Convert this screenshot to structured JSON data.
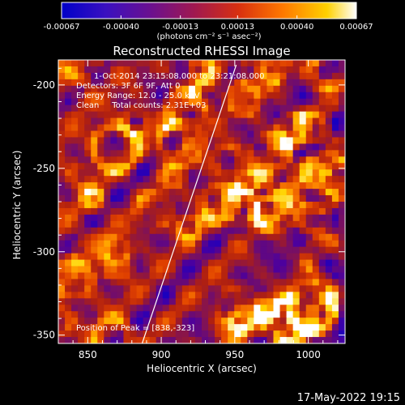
{
  "chart_data": {
    "type": "heatmap",
    "title": "Reconstructed RHESSI Image",
    "xlabel": "Heliocentric X (arcsec)",
    "ylabel": "Heliocentric Y (arcsec)",
    "xlim": [
      830,
      1025
    ],
    "ylim": [
      -355,
      -185
    ],
    "x_ticks": [
      850,
      900,
      950,
      1000
    ],
    "y_ticks": [
      -350,
      -300,
      -250,
      -200
    ],
    "colorbar": {
      "min": -0.00067,
      "max": 0.00067,
      "ticks": [
        "-0.00067",
        "-0.00040",
        "-0.00013",
        "0.00013",
        "0.00040",
        "0.00067"
      ],
      "tick_values": [
        -0.00067,
        -0.0004,
        -0.00013,
        0.00013,
        0.0004,
        0.00067
      ],
      "unit_label": "(photons cm⁻² s⁻¹ asec⁻²)",
      "colormap": [
        "#0000d0",
        "#4a00a0",
        "#7a1060",
        "#b02010",
        "#e04000",
        "#ff8a00",
        "#ffd400",
        "#ffffff"
      ]
    },
    "annotations": [
      "1-Oct-2014 23:15:08.000 to 23:21:08.000",
      "Detectors: 3F 6F 9F, Att 0",
      "Energy Range: 12.0 - 25.0 keV",
      "Clean     Total counts: 2.31E+03",
      "Position of Peak = [838,-323]"
    ],
    "peak": [
      838,
      -323
    ],
    "limb_line": [
      [
        887,
        -355
      ],
      [
        951,
        -188
      ]
    ],
    "description": "Mottled CLEAN-component pattern; bright yellow/white ring-like blobs over red/purple background, cooler purple region on the right."
  },
  "footer": {
    "date": "17-May-2022 19:15"
  }
}
